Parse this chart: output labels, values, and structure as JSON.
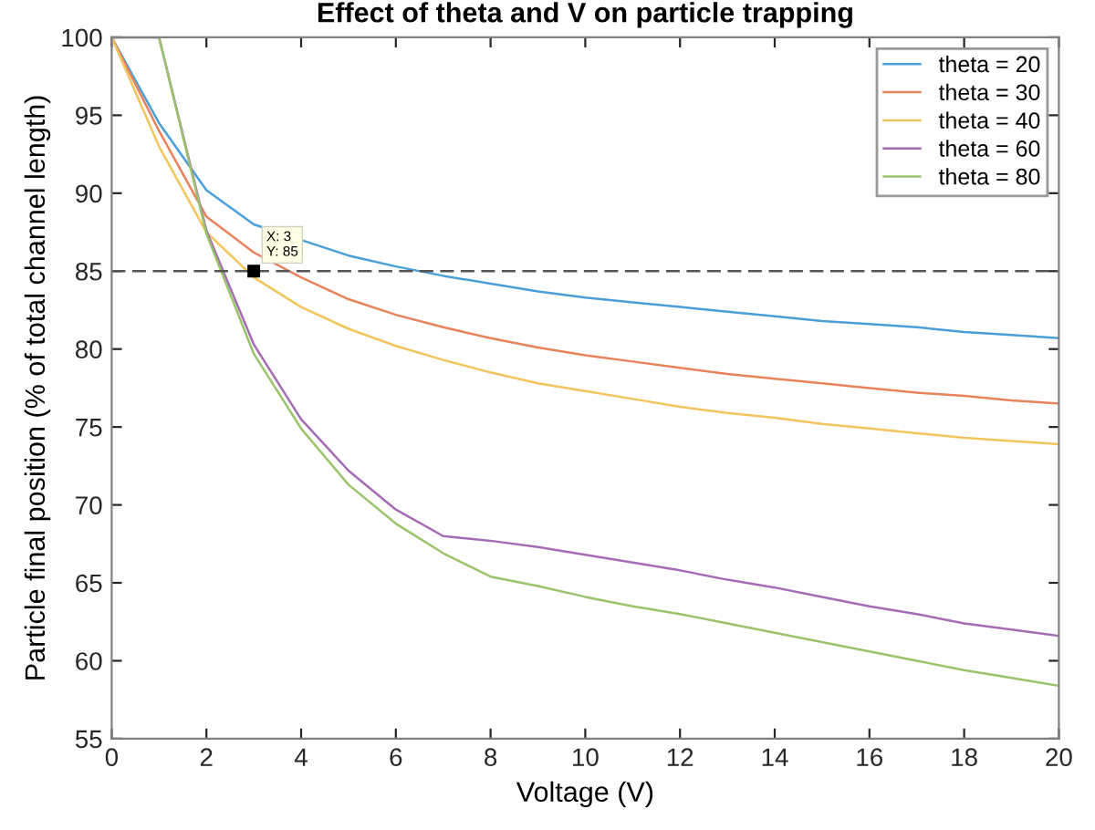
{
  "chart_data": {
    "type": "line",
    "title": "Effect of theta and V on particle trapping",
    "xlabel": "Voltage (V)",
    "ylabel": "Particle final position (% of total channel length)",
    "x": [
      0,
      1,
      2,
      3,
      4,
      5,
      6,
      7,
      8,
      9,
      10,
      11,
      12,
      13,
      14,
      15,
      16,
      17,
      18,
      19,
      20
    ],
    "series": [
      {
        "name": "theta = 20",
        "color": "#4a9fd8",
        "values": [
          100,
          94.5,
          90.2,
          88,
          87,
          86,
          85.3,
          84.7,
          84.2,
          83.7,
          83.3,
          83,
          82.7,
          82.4,
          82.1,
          81.8,
          81.6,
          81.4,
          81.1,
          80.9,
          80.7
        ]
      },
      {
        "name": "theta = 30",
        "color": "#e8825a",
        "values": [
          100,
          94,
          88.5,
          86.2,
          84.6,
          83.2,
          82.2,
          81.4,
          80.7,
          80.1,
          79.6,
          79.2,
          78.8,
          78.4,
          78.1,
          77.8,
          77.5,
          77.2,
          77,
          76.7,
          76.5
        ]
      },
      {
        "name": "theta = 40",
        "color": "#f2c55c",
        "values": [
          100,
          93,
          87.5,
          84.6,
          82.7,
          81.3,
          80.2,
          79.3,
          78.5,
          77.8,
          77.3,
          76.8,
          76.3,
          75.9,
          75.6,
          75.2,
          74.9,
          74.6,
          74.3,
          74.1,
          73.9
        ]
      },
      {
        "name": "theta = 60",
        "color": "#a66bb5",
        "values": [
          100,
          100,
          87.6,
          80.3,
          75.5,
          72.2,
          69.7,
          68,
          67.7,
          67.3,
          66.8,
          66.3,
          65.8,
          65.2,
          64.7,
          64.1,
          63.5,
          63,
          62.4,
          62,
          61.6
        ]
      },
      {
        "name": "theta = 80",
        "color": "#99c46b",
        "values": [
          100,
          100,
          87.4,
          79.7,
          74.9,
          71.3,
          68.8,
          66.9,
          65.4,
          64.8,
          64.1,
          63.5,
          63,
          62.4,
          61.8,
          61.2,
          60.6,
          60,
          59.4,
          58.9,
          58.4
        ]
      }
    ],
    "xlim": [
      0,
      20
    ],
    "xticks": [
      0,
      2,
      4,
      6,
      8,
      10,
      12,
      14,
      16,
      18,
      20
    ],
    "ylim": [
      55,
      100
    ],
    "yticks": [
      55,
      60,
      65,
      70,
      75,
      80,
      85,
      90,
      95,
      100
    ],
    "ref_lines": [
      {
        "axis": "y",
        "value": 85,
        "color": "#555555",
        "line_style": "dashed"
      }
    ],
    "annotations": [
      {
        "text": "X: 3\nY: 85",
        "x": 3,
        "y": 85
      }
    ],
    "grid": false,
    "legend": "top right",
    "marker": "none",
    "line_style": "solid"
  }
}
